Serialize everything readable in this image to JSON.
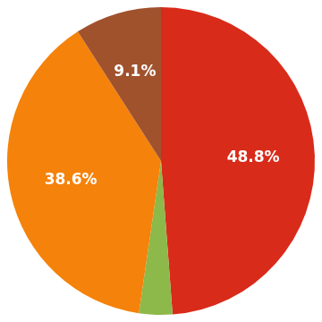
{
  "chart_data": {
    "type": "pie",
    "values": [
      48.8,
      3.5,
      38.6,
      9.1
    ],
    "value_labels": [
      "48.8%",
      null,
      "38.6%",
      "9.1%"
    ],
    "colors": [
      "#d92b1a",
      "#8db84a",
      "#f5820a",
      "#a0522d"
    ],
    "data_labels": true
  }
}
